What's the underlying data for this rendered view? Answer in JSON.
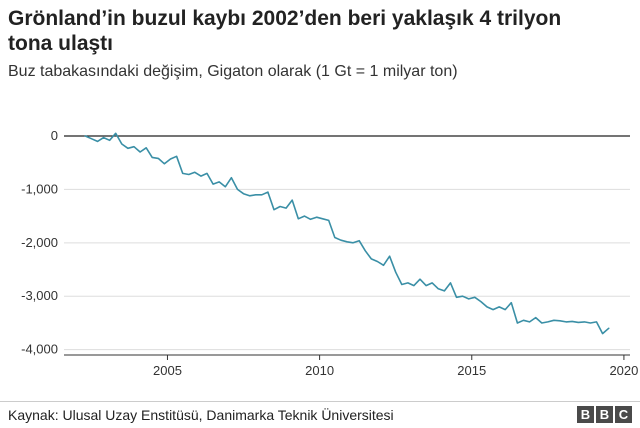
{
  "header": {
    "title": "Grönland’in buzul kaybı 2002’den beri yaklaşık 4 trilyon tona ulaştı",
    "subtitle": "Buz tabakasındaki değişim, Gigaton olarak (1 Gt = 1 milyar ton)"
  },
  "footer": {
    "source": "Kaynak: Ulusal Uzay Enstitüsü, Danimarka Teknik Üniversitesi",
    "logo_letters": [
      "B",
      "B",
      "C"
    ]
  },
  "colors": {
    "line": "#3a8fa6",
    "zero_line": "#222222",
    "grid": "#dddddd"
  },
  "chart_data": {
    "type": "line",
    "title": "Grönland’in buzul kaybı 2002’den beri yaklaşık 4 trilyon tona ulaştı",
    "subtitle": "Buz tabakasındaki değişim, Gigaton olarak (1 Gt = 1 milyar ton)",
    "xlabel": "",
    "ylabel": "",
    "xlim": [
      2001.6,
      2020.2
    ],
    "ylim": [
      -4100,
      150
    ],
    "x_ticks": [
      2005,
      2010,
      2015,
      2020
    ],
    "x_tick_labels": [
      "2005",
      "2010",
      "2015",
      "2020"
    ],
    "y_ticks": [
      0,
      -1000,
      -2000,
      -3000,
      -4000
    ],
    "y_tick_labels": [
      "0",
      "-1,000",
      "-2,000",
      "-3,000",
      "-4,000"
    ],
    "grid": true,
    "series": [
      {
        "x": [
          2002.3,
          2002.5,
          2002.7,
          2002.9,
          2003.1,
          2003.3,
          2003.5,
          2003.7,
          2003.9,
          2004.1,
          2004.3,
          2004.5,
          2004.7,
          2004.9,
          2005.1,
          2005.3,
          2005.5,
          2005.7,
          2005.9,
          2006.1,
          2006.3,
          2006.5,
          2006.7,
          2006.9,
          2007.1,
          2007.3,
          2007.5,
          2007.7,
          2007.9,
          2008.1,
          2008.3,
          2008.5,
          2008.7,
          2008.9,
          2009.1,
          2009.3,
          2009.5,
          2009.7,
          2009.9,
          2010.1,
          2010.3,
          2010.5,
          2010.7,
          2010.9,
          2011.1,
          2011.3,
          2011.5,
          2011.7,
          2011.9,
          2012.1,
          2012.3,
          2012.5,
          2012.7,
          2012.9,
          2013.1,
          2013.3,
          2013.5,
          2013.7,
          2013.9,
          2014.1,
          2014.3,
          2014.5,
          2014.7,
          2014.9,
          2015.1,
          2015.3,
          2015.5,
          2015.7,
          2015.9,
          2016.1,
          2016.3,
          2016.5,
          2016.7,
          2016.9,
          2017.1,
          2017.3,
          2017.5,
          2017.7,
          2017.9,
          2018.1,
          2018.3,
          2018.5,
          2018.7,
          2018.9,
          2019.1,
          2019.3,
          2019.5
        ],
        "values": [
          0,
          -50,
          -100,
          -30,
          -80,
          50,
          -150,
          -230,
          -200,
          -300,
          -220,
          -400,
          -420,
          -520,
          -430,
          -380,
          -700,
          -720,
          -680,
          -750,
          -700,
          -900,
          -860,
          -950,
          -780,
          -1000,
          -1080,
          -1120,
          -1100,
          -1100,
          -1050,
          -1380,
          -1320,
          -1350,
          -1200,
          -1550,
          -1500,
          -1560,
          -1520,
          -1550,
          -1580,
          -1900,
          -1950,
          -1980,
          -2000,
          -1960,
          -2150,
          -2300,
          -2350,
          -2420,
          -2250,
          -2550,
          -2780,
          -2750,
          -2800,
          -2680,
          -2800,
          -2750,
          -2860,
          -2900,
          -2750,
          -3020,
          -3000,
          -3050,
          -3020,
          -3100,
          -3200,
          -3250,
          -3200,
          -3250,
          -3120,
          -3500,
          -3450,
          -3480,
          -3400,
          -3500,
          -3480,
          -3450,
          -3460,
          -3480,
          -3470,
          -3490,
          -3480,
          -3500,
          -3480,
          -3700,
          -3600
        ]
      }
    ]
  }
}
